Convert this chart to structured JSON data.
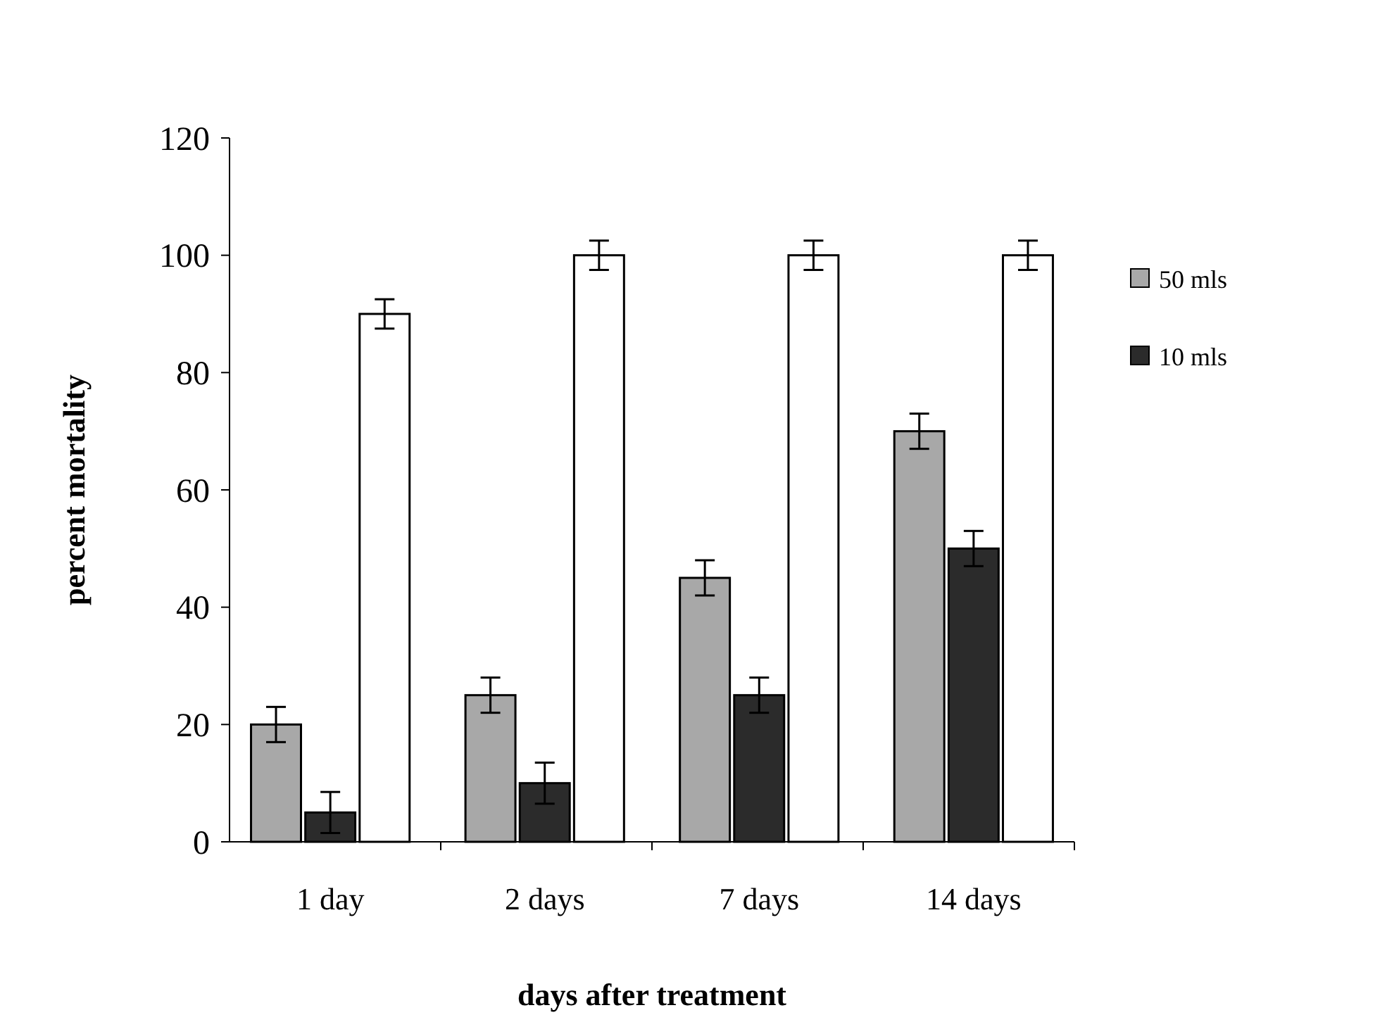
{
  "chart_data": {
    "type": "bar",
    "xlabel": "days after treatment",
    "ylabel": "percent mortality",
    "categories": [
      "1 day",
      "2 days",
      "7 days",
      "14 days"
    ],
    "series": [
      {
        "name": "50 mls",
        "color": "#a8a8a8",
        "values": [
          20,
          25,
          45,
          70
        ],
        "errors": [
          3,
          3,
          3,
          3
        ]
      },
      {
        "name": "10 mls",
        "color": "#2b2b2b",
        "values": [
          5,
          10,
          25,
          50
        ],
        "errors": [
          3.5,
          3.5,
          3,
          3
        ]
      },
      {
        "color": "#ffffff",
        "values": [
          90,
          100,
          100,
          100
        ],
        "errors": [
          2.5,
          2.5,
          2.5,
          2.5
        ]
      }
    ],
    "ylim": [
      0,
      120
    ],
    "yticks": [
      0,
      20,
      40,
      60,
      80,
      100,
      120
    ],
    "grid": false,
    "legend": "right"
  }
}
